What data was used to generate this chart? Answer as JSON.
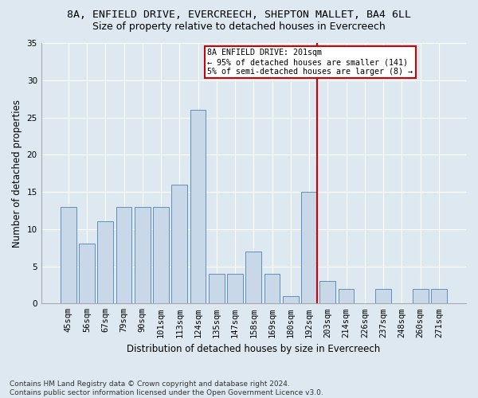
{
  "title1": "8A, ENFIELD DRIVE, EVERCREECH, SHEPTON MALLET, BA4 6LL",
  "title2": "Size of property relative to detached houses in Evercreech",
  "xlabel": "Distribution of detached houses by size in Evercreech",
  "ylabel": "Number of detached properties",
  "categories": [
    "45sqm",
    "56sqm",
    "67sqm",
    "79sqm",
    "90sqm",
    "101sqm",
    "113sqm",
    "124sqm",
    "135sqm",
    "147sqm",
    "158sqm",
    "169sqm",
    "180sqm",
    "192sqm",
    "203sqm",
    "214sqm",
    "226sqm",
    "237sqm",
    "248sqm",
    "260sqm",
    "271sqm"
  ],
  "values": [
    13,
    8,
    11,
    13,
    13,
    13,
    16,
    26,
    4,
    4,
    7,
    4,
    1,
    15,
    3,
    2,
    0,
    2,
    0,
    2,
    2
  ],
  "bar_color": "#c8d8e8",
  "bar_edge_color": "#6090b8",
  "background_color": "#dde8f0",
  "vline_x_idx": 13,
  "vline_color": "#cc0000",
  "annotation_lines": [
    "8A ENFIELD DRIVE: 201sqm",
    "← 95% of detached houses are smaller (141)",
    "5% of semi-detached houses are larger (8) →"
  ],
  "annotation_box_color": "white",
  "annotation_box_edge": "#cc0000",
  "ylim": [
    0,
    35
  ],
  "yticks": [
    0,
    5,
    10,
    15,
    20,
    25,
    30,
    35
  ],
  "footer": "Contains HM Land Registry data © Crown copyright and database right 2024.\nContains public sector information licensed under the Open Government Licence v3.0.",
  "title_fontsize": 9.5,
  "subtitle_fontsize": 9,
  "tick_fontsize": 7.5,
  "ylabel_fontsize": 8.5,
  "xlabel_fontsize": 8.5,
  "footer_fontsize": 6.5
}
